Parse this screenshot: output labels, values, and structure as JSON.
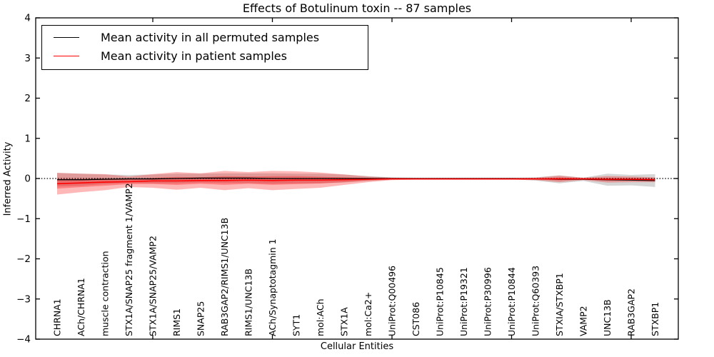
{
  "chart_data": {
    "type": "line",
    "title": "Effects of Botulinum toxin -- 87 samples",
    "xlabel": "Cellular Entities",
    "ylabel": "Inferred Activity",
    "ylim": [
      -4,
      4
    ],
    "ytick_labels": [
      "4",
      "3",
      "2",
      "1",
      "0",
      "−1",
      "−2",
      "−3",
      "−4"
    ],
    "ytick_values": [
      4,
      3,
      2,
      1,
      0,
      -1,
      -2,
      -3,
      -4
    ],
    "xtick_indices": [
      4,
      9,
      14,
      19,
      24
    ],
    "grid": false,
    "zero_line": "dotted-black",
    "legend_position": "upper-left",
    "categories": [
      "CHRNA1",
      "ACh/CHRNA1",
      "muscle contraction",
      "STX1A/SNAP25 fragment 1/VAMP2",
      "STX1A/SNAP25/VAMP2",
      "RIMS1",
      "SNAP25",
      "RAB3GAP2/RIMS1/UNC13B",
      "RIMS1/UNC13B",
      "ACh/Synaptotagmin 1",
      "SYT1",
      "mol:ACh",
      "STX1A",
      "mol:Ca2+",
      "UniProt:Q00496",
      "CST086",
      "UniProt:P10845",
      "UniProt:P19321",
      "UniProt:P30996",
      "UniProt:P10844",
      "UniProt:Q60393",
      "STXIA/STXBP1",
      "VAMP2",
      "UNC13B",
      "RAB3GAP2",
      "STXBP1"
    ],
    "series": [
      {
        "name": "Mean activity in all permuted samples",
        "color": "#000000",
        "band_color": "#999999",
        "band_opacity": 0.4,
        "values": [
          -0.03,
          -0.03,
          -0.02,
          -0.01,
          -0.01,
          0.0,
          0.01,
          0.01,
          0.01,
          0.0,
          0.0,
          0.0,
          0.0,
          0.0,
          0.0,
          0.0,
          0.0,
          0.0,
          0.0,
          0.0,
          -0.01,
          -0.02,
          -0.02,
          -0.03,
          -0.04,
          -0.05
        ],
        "std": [
          0.17,
          0.15,
          0.12,
          0.1,
          0.11,
          0.12,
          0.11,
          0.12,
          0.12,
          0.13,
          0.12,
          0.12,
          0.1,
          0.06,
          0.03,
          0.02,
          0.02,
          0.02,
          0.02,
          0.02,
          0.04,
          0.1,
          0.04,
          0.15,
          0.13,
          0.16
        ]
      },
      {
        "name": "Mean activity in patient samples",
        "color": "#ff0000",
        "band_color": "#ff0000",
        "band_opacity": 0.28,
        "values": [
          -0.13,
          -0.11,
          -0.09,
          -0.08,
          -0.06,
          -0.06,
          -0.05,
          -0.05,
          -0.04,
          -0.05,
          -0.04,
          -0.04,
          -0.03,
          -0.02,
          -0.01,
          -0.01,
          -0.01,
          -0.01,
          -0.01,
          -0.01,
          -0.01,
          -0.01,
          -0.01,
          -0.02,
          -0.02,
          -0.03
        ],
        "std": [
          0.27,
          0.23,
          0.2,
          0.13,
          0.17,
          0.22,
          0.18,
          0.24,
          0.2,
          0.24,
          0.22,
          0.19,
          0.13,
          0.07,
          0.03,
          0.02,
          0.02,
          0.02,
          0.02,
          0.02,
          0.03,
          0.08,
          0.03,
          0.08,
          0.07,
          0.06
        ]
      }
    ]
  },
  "legend": [
    {
      "label": "Mean activity in all permuted samples",
      "color": "#000000"
    },
    {
      "label": "Mean activity in patient samples",
      "color": "#ff0000"
    }
  ]
}
